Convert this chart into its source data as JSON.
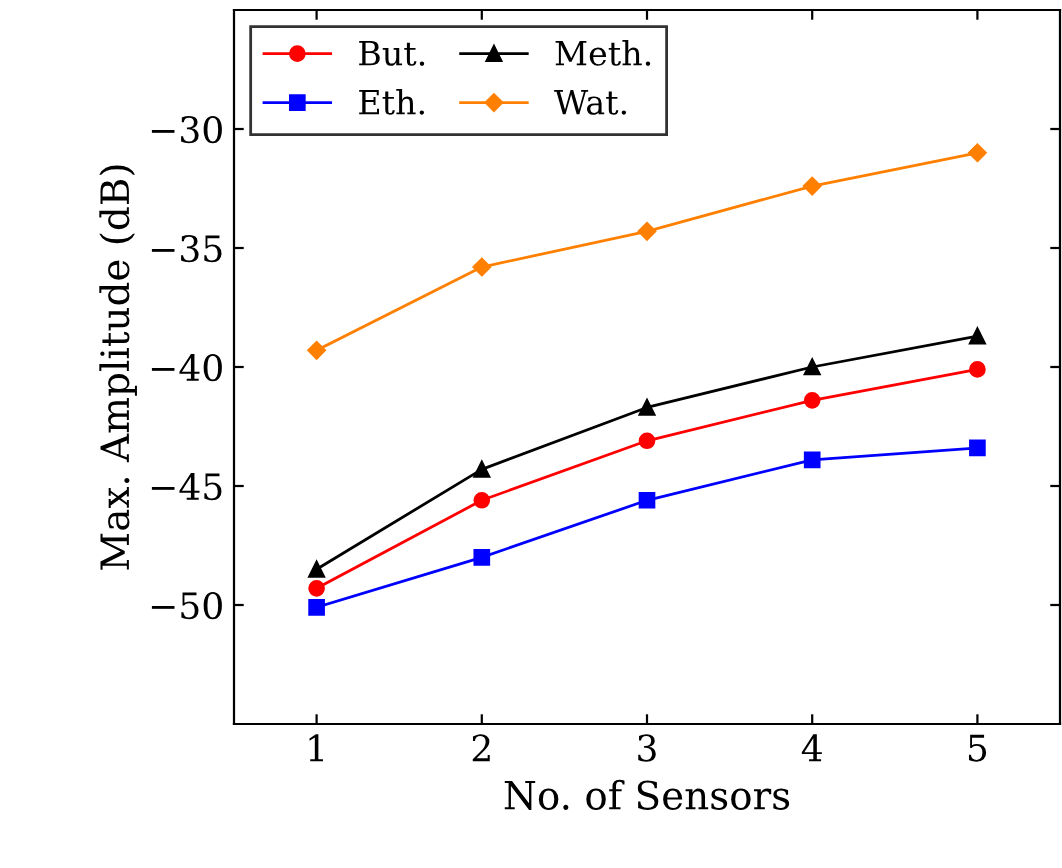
{
  "chart_data": {
    "type": "line",
    "xlabel": "No. of Sensors",
    "ylabel": "Max. Amplitude (dB)",
    "x": [
      1,
      2,
      3,
      4,
      5
    ],
    "series": [
      {
        "name": "But.",
        "color": "#ff0000",
        "marker": "circle",
        "values": [
          -49.3,
          -45.6,
          -43.1,
          -41.4,
          -40.1
        ]
      },
      {
        "name": "Eth.",
        "color": "#0000ff",
        "marker": "square",
        "values": [
          -50.1,
          -48.0,
          -45.6,
          -43.9,
          -43.4
        ]
      },
      {
        "name": "Meth.",
        "color": "#000000",
        "marker": "triangle",
        "values": [
          -48.5,
          -44.3,
          -41.7,
          -40.0,
          -38.7
        ]
      },
      {
        "name": "Wat.",
        "color": "#ff8000",
        "marker": "diamond",
        "values": [
          -39.3,
          -35.8,
          -34.3,
          -32.4,
          -31.0
        ]
      }
    ],
    "xlim": [
      0.5,
      5.5
    ],
    "xticks": [
      1,
      2,
      3,
      4,
      5
    ],
    "ylim": [
      -55,
      -25
    ],
    "yticks": [
      {
        "value": -50,
        "label": "−50"
      },
      {
        "value": -45,
        "label": "−45"
      },
      {
        "value": -40,
        "label": "−40"
      },
      {
        "value": -35,
        "label": "−35"
      },
      {
        "value": -30,
        "label": "−30"
      }
    ],
    "grid": false,
    "legend": "top left",
    "line_style": "solid"
  }
}
